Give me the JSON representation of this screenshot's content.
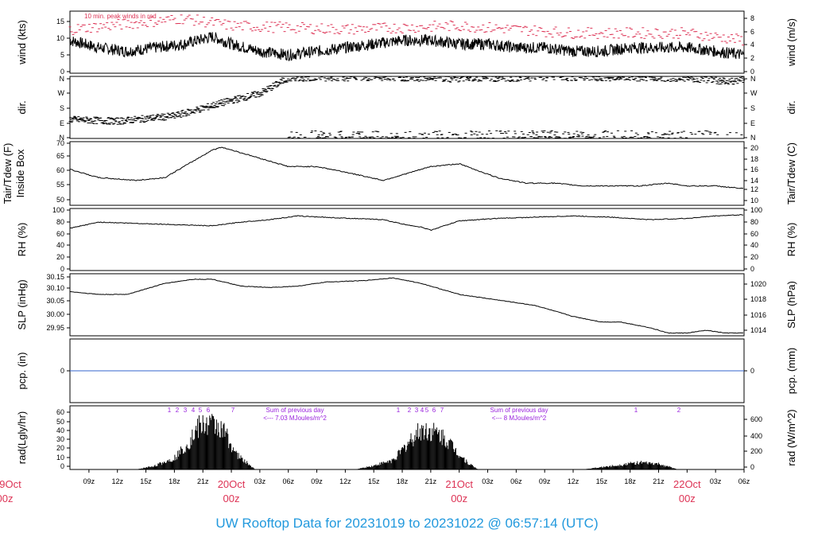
{
  "colors": {
    "axis": "#000000",
    "peak": "#dd3355",
    "date": "#dd3355",
    "precip": "#3366cc",
    "radnote": "#9922dd",
    "title": "#2299dd"
  },
  "time": {
    "ticks": [
      "09z",
      "12z",
      "15z",
      "18z",
      "21z",
      "20Oct|00z",
      "03z",
      "06z",
      "09z",
      "12z",
      "15z",
      "18z",
      "21z",
      "21Oct|00z",
      "03z",
      "06z",
      "09z",
      "12z",
      "15z",
      "18z",
      "21z",
      "22Oct|00z",
      "03z",
      "06z"
    ],
    "left_date": [
      "9Oct",
      "00z"
    ]
  },
  "panels": [
    {
      "id": "wind",
      "ylabel_left": [
        "wind (kts)"
      ],
      "ylabel_right": [
        "wind (m/s)"
      ],
      "ticks_left": [
        "0",
        "5",
        "10",
        "15"
      ],
      "ticks_right": [
        "0",
        "2",
        "4",
        "6",
        "8"
      ],
      "legend": "10 min. peak winds in red"
    },
    {
      "id": "dir",
      "ylabel_left": [
        "dir."
      ],
      "ylabel_right": [
        "dir."
      ],
      "ticks_left": [
        "N",
        "E",
        "S",
        "W",
        "N"
      ],
      "ticks_right": [
        "N",
        "E",
        "S",
        "W",
        "N"
      ]
    },
    {
      "id": "temp",
      "ylabel_left": [
        "Tair/Tdew (F)",
        "Inside Box"
      ],
      "ylabel_right": [
        "Tair/Tdew (C)"
      ],
      "ticks_left": [
        "50",
        "55",
        "60",
        "65",
        "70"
      ],
      "ticks_right": [
        "10",
        "12",
        "14",
        "16",
        "18",
        "20"
      ]
    },
    {
      "id": "rh",
      "ylabel_left": [
        "RH (%)"
      ],
      "ylabel_right": [
        "RH (%)"
      ],
      "ticks_left": [
        "0",
        "20",
        "40",
        "60",
        "80",
        "100"
      ],
      "ticks_right": [
        "0",
        "20",
        "40",
        "60",
        "80",
        "100"
      ]
    },
    {
      "id": "slp",
      "ylabel_left": [
        "SLP (inHg)"
      ],
      "ylabel_right": [
        "SLP (hPa)"
      ],
      "ticks_left": [
        "29.95",
        "30.00",
        "30.05",
        "30.10",
        "30.15"
      ],
      "ticks_right": [
        "1014",
        "1016",
        "1018",
        "1020"
      ]
    },
    {
      "id": "pcp",
      "ylabel_left": [
        "pcp. (in)"
      ],
      "ylabel_right": [
        "pcp. (mm)"
      ],
      "ticks_left": [
        "0"
      ],
      "ticks_right": [
        "0"
      ]
    },
    {
      "id": "rad",
      "ylabel_left": [
        "rad(Lgly/hr)"
      ],
      "ylabel_right": [
        "rad (W/m^2)"
      ],
      "ticks_left": [
        "0",
        "10",
        "20",
        "30",
        "40",
        "50",
        "60"
      ],
      "ticks_right": [
        "0",
        "200",
        "400",
        "600"
      ],
      "notes": [
        {
          "line1": "Sum of previous day",
          "line2": "<--- 7.03 MJoules/m^2"
        },
        {
          "line1": "Sum of previous day",
          "line2": "<--- 8 MJoules/m^2"
        }
      ],
      "markers": [
        "1",
        "2",
        "3",
        "4",
        "5",
        "6",
        "7",
        "1",
        "2",
        "3",
        "4",
        "5",
        "6",
        "7",
        "1",
        "2"
      ]
    }
  ],
  "title": "UW Rooftop Data for 20231019  to  20231022 @ 06:57:14  (UTC)",
  "chart_data": {
    "type": "line",
    "x_unit": "hours UTC",
    "x_range": [
      "2023-10-19T07:00Z",
      "2023-10-22T07:00Z"
    ],
    "series": [
      {
        "name": "wind (kts)",
        "x": [
          7,
          10,
          13,
          16,
          19,
          22,
          24,
          27,
          30,
          33,
          36,
          39,
          42,
          45,
          48,
          51,
          54,
          57,
          60,
          63,
          66,
          69,
          72,
          75,
          78
        ],
        "values": [
          9,
          7,
          6,
          7,
          8,
          10,
          8,
          6,
          5,
          6,
          7,
          8,
          9,
          9,
          8,
          8,
          7,
          7,
          6,
          6,
          7,
          7,
          7,
          6,
          5
        ],
        "ylim": [
          0,
          17
        ]
      },
      {
        "name": "10 min. peak winds",
        "x": [
          7,
          19,
          24,
          36,
          48,
          60,
          72,
          78
        ],
        "values": [
          12,
          15,
          13,
          12,
          13,
          11,
          11,
          9
        ]
      },
      {
        "name": "dir.",
        "x": [
          7,
          12,
          18,
          24,
          27,
          30,
          40,
          48,
          60,
          72,
          76,
          78
        ],
        "values": [
          110,
          100,
          130,
          220,
          260,
          350,
          355,
          345,
          355,
          350,
          330,
          340
        ]
      },
      {
        "name": "Tair/Tdew (F)",
        "x": [
          7,
          10,
          14,
          17,
          20,
          22,
          23,
          24,
          25,
          27,
          30,
          33,
          36,
          40,
          41,
          43,
          45,
          48,
          52,
          55,
          58,
          61,
          64,
          67,
          70,
          72,
          75,
          78
        ],
        "values": [
          61,
          58,
          57,
          58,
          64,
          68,
          69,
          68,
          67,
          65,
          62,
          62,
          60,
          57,
          58,
          60,
          62,
          63,
          58,
          56,
          56,
          55,
          55,
          55,
          56,
          55,
          55,
          54
        ],
        "ylim": [
          48,
          71
        ]
      },
      {
        "name": "RH (%)",
        "x": [
          7,
          10,
          14,
          18,
          22,
          25,
          28,
          31,
          35,
          40,
          42,
          44,
          45,
          48,
          52,
          56,
          60,
          64,
          68,
          72,
          75,
          78
        ],
        "values": [
          68,
          78,
          76,
          74,
          72,
          78,
          82,
          88,
          85,
          82,
          75,
          70,
          65,
          80,
          84,
          86,
          88,
          86,
          82,
          84,
          88,
          90
        ],
        "ylim": [
          0,
          100
        ]
      },
      {
        "name": "SLP (inHg)",
        "x": [
          7,
          10,
          13,
          17,
          20,
          22,
          25,
          28,
          31,
          34,
          38,
          41,
          44,
          48,
          52,
          56,
          60,
          63,
          65,
          68,
          70,
          72,
          74,
          76,
          78
        ],
        "values": [
          30.09,
          30.08,
          30.08,
          30.12,
          30.135,
          30.135,
          30.11,
          30.105,
          30.11,
          30.125,
          30.13,
          30.14,
          30.12,
          30.08,
          30.06,
          30.04,
          30.0,
          29.98,
          29.98,
          29.96,
          29.94,
          29.94,
          29.95,
          29.94,
          29.94
        ],
        "ylim": [
          29.93,
          30.155
        ]
      },
      {
        "name": "pcp. (in)",
        "x": [
          7,
          78
        ],
        "values": [
          0,
          0
        ],
        "ylim": [
          -1,
          1
        ]
      },
      {
        "name": "rad(Lgly/hr)",
        "x": [
          14,
          16,
          18,
          19.5,
          20.5,
          21.5,
          22.5,
          23.5,
          24.5,
          25.5,
          26.5,
          37,
          39,
          41,
          42,
          43,
          44,
          45,
          46,
          47,
          48,
          49,
          50,
          61,
          63,
          65,
          66,
          67,
          68,
          69,
          70,
          71
        ],
        "values": [
          0,
          5,
          15,
          35,
          55,
          60,
          58,
          45,
          20,
          10,
          0,
          0,
          5,
          12,
          25,
          40,
          52,
          50,
          45,
          35,
          20,
          8,
          0,
          0,
          3,
          6,
          8,
          9,
          8,
          7,
          4,
          0
        ],
        "ylim": [
          0,
          65
        ]
      }
    ]
  }
}
